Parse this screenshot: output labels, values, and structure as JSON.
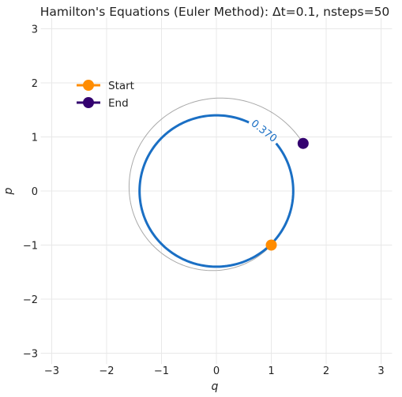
{
  "chart_data": {
    "type": "line",
    "title": "Hamilton's Equations (Euler Method): Δt=0.1, nsteps=50",
    "xlabel": "q",
    "ylabel": "p",
    "xlim": [
      -3.2,
      3.2
    ],
    "ylim": [
      -3.2,
      3.2
    ],
    "xticks": [
      -3,
      -2,
      -1,
      0,
      1,
      2,
      3
    ],
    "yticks": [
      -3,
      -2,
      -1,
      0,
      1,
      2,
      3
    ],
    "xtick_labels": [
      "−3",
      "−2",
      "−1",
      "0",
      "1",
      "2",
      "3"
    ],
    "ytick_labels": [
      "−3",
      "−2",
      "−1",
      "0",
      "1",
      "2",
      "3"
    ],
    "grid": true,
    "legend_position": "upper-left",
    "contour": {
      "label": "0.370",
      "level": 0.37,
      "color": "#1a6fc4",
      "shape": "circle",
      "center": [
        0,
        0
      ],
      "radius": 1.4
    },
    "trajectory": {
      "color": "#a9a9a9",
      "start": [
        1.0,
        -1.0
      ],
      "end": [
        1.58,
        0.88
      ],
      "radius_start": 1.414,
      "radius_end": 1.81
    },
    "series": [
      {
        "name": "Start",
        "color": "#ff8c00",
        "point": [
          1.0,
          -1.0
        ]
      },
      {
        "name": "End",
        "color": "#33006f",
        "point": [
          1.58,
          0.88
        ]
      }
    ]
  }
}
